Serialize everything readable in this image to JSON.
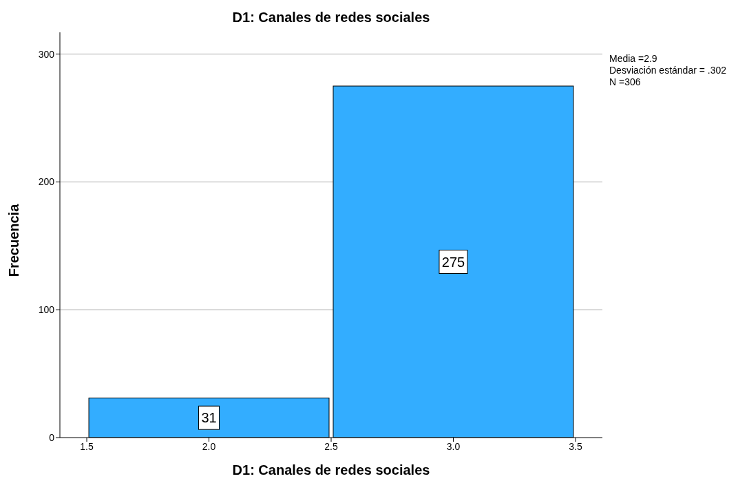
{
  "chart_data": {
    "type": "histogram",
    "title": "D1: Canales de redes sociales",
    "xlabel": "D1: Canales de redes sociales",
    "ylabel": "Frecuencia",
    "bins": [
      1.5,
      2.5,
      3.5
    ],
    "values": [
      31,
      275
    ],
    "color": "#33adff",
    "data_labels": true,
    "xlim": [
      1.39,
      3.61
    ],
    "xticks": [
      1.5,
      {
        "value": 2,
        "label": "2.0"
      },
      2.5,
      {
        "value": 3,
        "label": "3.0"
      },
      3.5
    ],
    "ylim": [
      0,
      317
    ],
    "yticks": [
      0,
      100,
      200,
      300
    ],
    "grid": "y",
    "annotations": [
      "Media =2.9",
      "Desviación estándar = .302",
      "N =306"
    ]
  }
}
